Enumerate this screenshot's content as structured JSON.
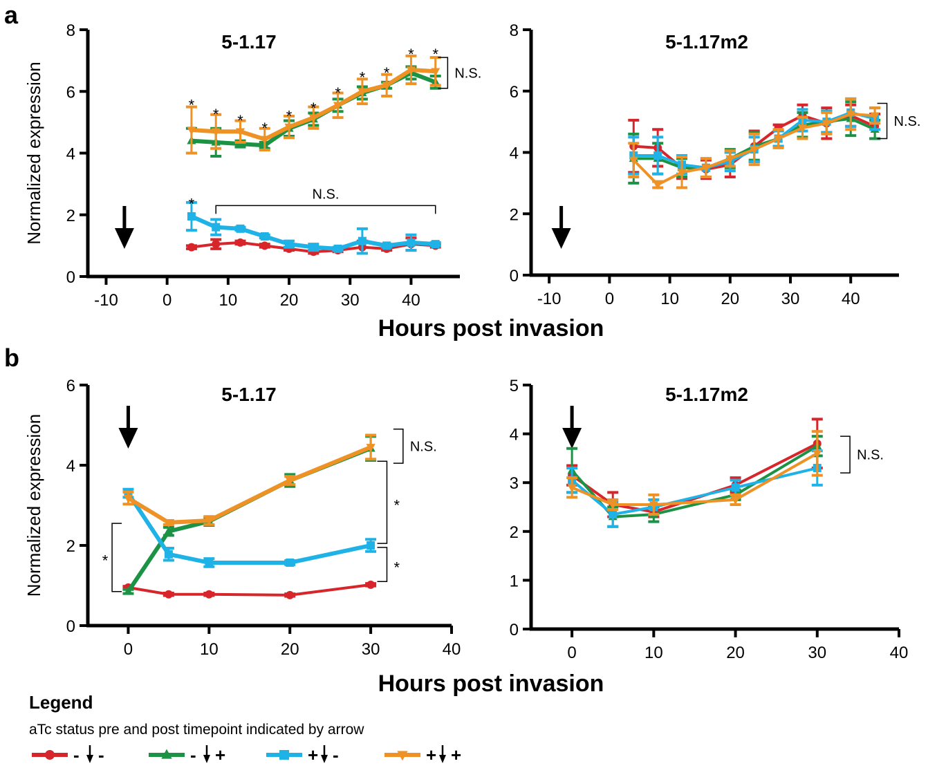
{
  "panel_letters": {
    "a": "a",
    "b": "b"
  },
  "shared_xlabel": "Hours post invasion",
  "legend": {
    "title": "Legend",
    "subtitle": "aTc status pre and post timepoint indicated by arrow",
    "entries": [
      {
        "pre": "-",
        "post": "-",
        "color": "#d7262b",
        "marker": "circle"
      },
      {
        "pre": "-",
        "post": "+",
        "color": "#1b9244",
        "marker": "triangle-up"
      },
      {
        "pre": "+",
        "post": "-",
        "color": "#1fb2e6",
        "marker": "square"
      },
      {
        "pre": "+",
        "post": "+",
        "color": "#ef9226",
        "marker": "triangle-down"
      }
    ]
  },
  "chart_data": [
    {
      "type": "line",
      "panel": "a",
      "title": "5-1.17",
      "xlabel": "Hours post invasion",
      "ylabel": "Normalized expression",
      "xlim": [
        -13,
        48
      ],
      "ylim": [
        0,
        8
      ],
      "xticks": [
        -10,
        0,
        10,
        20,
        30,
        40
      ],
      "yticks": [
        0,
        2,
        4,
        6,
        8
      ],
      "arrow_x": -7,
      "x": [
        4,
        8,
        12,
        16,
        20,
        24,
        28,
        32,
        36,
        40,
        44
      ],
      "series": [
        {
          "legend_index": 0,
          "color": "#d7262b",
          "marker": "circle",
          "width": 4,
          "values": [
            0.95,
            1.05,
            1.1,
            1.0,
            0.9,
            0.8,
            0.85,
            0.95,
            0.9,
            1.05,
            1.0
          ],
          "errors": [
            0.05,
            0.15,
            0.05,
            0.05,
            0.05,
            0.05,
            0.05,
            0.2,
            0.05,
            0.2,
            0.05
          ]
        },
        {
          "legend_index": 1,
          "color": "#1b9244",
          "marker": "triangle-up",
          "width": 6,
          "values": [
            4.4,
            4.35,
            4.3,
            4.25,
            4.8,
            5.1,
            5.55,
            5.95,
            6.2,
            6.6,
            6.3
          ],
          "errors": [
            0.4,
            0.45,
            0.1,
            0.1,
            0.25,
            0.2,
            0.2,
            0.2,
            0.1,
            0.2,
            0.2
          ]
        },
        {
          "legend_index": 2,
          "color": "#1fb2e6",
          "marker": "square",
          "width": 6,
          "values": [
            1.95,
            1.6,
            1.55,
            1.3,
            1.05,
            0.95,
            0.9,
            1.15,
            1.0,
            1.1,
            1.05
          ],
          "errors": [
            0.45,
            0.25,
            0.05,
            0.05,
            0.1,
            0.1,
            0.05,
            0.4,
            0.05,
            0.25,
            0.05
          ]
        },
        {
          "legend_index": 3,
          "color": "#ef9226",
          "marker": "triangle-down",
          "width": 6,
          "values": [
            4.75,
            4.7,
            4.7,
            4.45,
            4.85,
            5.15,
            5.55,
            6.0,
            6.2,
            6.7,
            6.65
          ],
          "errors": [
            0.75,
            0.55,
            0.35,
            0.35,
            0.35,
            0.35,
            0.4,
            0.4,
            0.35,
            0.45,
            0.45
          ]
        }
      ],
      "annotations": [
        {
          "text": "*",
          "x": 4,
          "y": 5.7
        },
        {
          "text": "*",
          "x": 8,
          "y": 5.4
        },
        {
          "text": "*",
          "x": 12,
          "y": 5.2
        },
        {
          "text": "*",
          "x": 16,
          "y": 4.95
        },
        {
          "text": "*",
          "x": 20,
          "y": 5.35
        },
        {
          "text": "*",
          "x": 24,
          "y": 5.6
        },
        {
          "text": "*",
          "x": 28,
          "y": 6.1
        },
        {
          "text": "*",
          "x": 32,
          "y": 6.6
        },
        {
          "text": "*",
          "x": 36,
          "y": 6.75
        },
        {
          "text": "*",
          "x": 40,
          "y": 7.35
        },
        {
          "text": "*",
          "x": 44,
          "y": 7.35
        },
        {
          "text": "*",
          "x": 4,
          "y": 2.5
        }
      ],
      "brackets": [
        {
          "kind": "vertical",
          "x": 46,
          "y1": 6.1,
          "y2": 7.1,
          "label": "N.S."
        },
        {
          "kind": "horizontal",
          "y": 2.3,
          "x1": 8,
          "x2": 44,
          "label": "N.S."
        }
      ]
    },
    {
      "type": "line",
      "panel": "a",
      "title": "5-1.17m2",
      "xlabel": "Hours post invasion",
      "ylabel": "",
      "xlim": [
        -13,
        48
      ],
      "ylim": [
        0,
        8
      ],
      "xticks": [
        -10,
        0,
        10,
        20,
        30,
        40
      ],
      "yticks": [
        0,
        2,
        4,
        6,
        8
      ],
      "arrow_x": -8,
      "x": [
        4,
        8,
        12,
        16,
        20,
        24,
        28,
        32,
        36,
        40,
        44
      ],
      "series": [
        {
          "legend_index": 0,
          "color": "#d7262b",
          "marker": "circle",
          "width": 4,
          "values": [
            4.2,
            4.15,
            3.5,
            3.45,
            3.6,
            4.2,
            4.8,
            5.2,
            4.95,
            5.2,
            4.85
          ],
          "errors": [
            0.85,
            0.6,
            0.35,
            0.3,
            0.4,
            0.5,
            0.1,
            0.35,
            0.5,
            0.35,
            0.4
          ]
        },
        {
          "legend_index": 1,
          "color": "#1b9244",
          "marker": "triangle-up",
          "width": 4,
          "values": [
            3.8,
            3.8,
            3.5,
            3.5,
            3.8,
            4.2,
            4.45,
            4.9,
            5.0,
            5.1,
            4.75
          ],
          "errors": [
            0.8,
            0.5,
            0.3,
            0.3,
            0.3,
            0.45,
            0.25,
            0.4,
            0.35,
            0.55,
            0.3
          ]
        },
        {
          "legend_index": 2,
          "color": "#1fb2e6",
          "marker": "square",
          "width": 4,
          "values": [
            3.9,
            3.9,
            3.6,
            3.5,
            3.7,
            4.1,
            4.45,
            5.05,
            5.0,
            5.3,
            5.1
          ],
          "errors": [
            0.6,
            0.6,
            0.3,
            0.3,
            0.3,
            0.4,
            0.25,
            0.35,
            0.35,
            0.45,
            0.35
          ]
        },
        {
          "legend_index": 3,
          "color": "#ef9226",
          "marker": "triangle-down",
          "width": 4,
          "values": [
            3.75,
            2.95,
            3.35,
            3.5,
            3.8,
            4.1,
            4.45,
            4.8,
            4.95,
            5.25,
            5.2
          ],
          "errors": [
            0.55,
            0.1,
            0.5,
            0.3,
            0.25,
            0.5,
            0.3,
            0.35,
            0.35,
            0.5,
            0.25
          ]
        }
      ],
      "annotations": [],
      "brackets": [
        {
          "kind": "vertical",
          "x": 46,
          "y1": 4.45,
          "y2": 5.6,
          "label": "N.S."
        }
      ]
    },
    {
      "type": "line",
      "panel": "b",
      "title": "5-1.17",
      "xlabel": "Hours post invasion",
      "ylabel": "Normalized expression",
      "xlim": [
        -5,
        40
      ],
      "ylim": [
        0,
        6
      ],
      "xticks": [
        0,
        10,
        20,
        30,
        40
      ],
      "yticks": [
        0,
        2,
        4,
        6
      ],
      "arrow_x": 0,
      "x": [
        0,
        5,
        10,
        20,
        30
      ],
      "series": [
        {
          "legend_index": 0,
          "color": "#d7262b",
          "marker": "circle",
          "width": 4,
          "values": [
            0.95,
            0.78,
            0.78,
            0.76,
            1.02
          ],
          "errors": [
            0.03,
            0.03,
            0.03,
            0.03,
            0.03
          ]
        },
        {
          "legend_index": 1,
          "color": "#1b9244",
          "marker": "triangle-up",
          "width": 6,
          "values": [
            0.85,
            2.35,
            2.6,
            3.62,
            4.42
          ],
          "errors": [
            0.05,
            0.1,
            0.1,
            0.15,
            0.3
          ]
        },
        {
          "legend_index": 2,
          "color": "#1fb2e6",
          "marker": "square",
          "width": 6,
          "values": [
            3.3,
            1.78,
            1.57,
            1.57,
            2.0
          ],
          "errors": [
            0.1,
            0.15,
            0.1,
            0.05,
            0.15
          ]
        },
        {
          "legend_index": 3,
          "color": "#ef9226",
          "marker": "triangle-down",
          "width": 6,
          "values": [
            3.18,
            2.57,
            2.62,
            3.62,
            4.45
          ],
          "errors": [
            0.15,
            0.05,
            0.1,
            0.1,
            0.3
          ]
        }
      ],
      "annotations": [],
      "brackets": [
        {
          "kind": "vertical",
          "x": 34,
          "y1": 4.05,
          "y2": 4.9,
          "label": "N.S."
        },
        {
          "kind": "vertical",
          "x": 32,
          "y1": 2.05,
          "y2": 4.1,
          "label": "*"
        },
        {
          "kind": "vertical",
          "x": 32,
          "y1": 1.1,
          "y2": 1.95,
          "label": "*"
        },
        {
          "kind": "vertical-left",
          "x": -2,
          "y1": 0.85,
          "y2": 2.55,
          "label": "*"
        }
      ]
    },
    {
      "type": "line",
      "panel": "b",
      "title": "5-1.17m2",
      "xlabel": "Hours post invasion",
      "ylabel": "",
      "xlim": [
        -5,
        40
      ],
      "ylim": [
        0,
        5
      ],
      "xticks": [
        0,
        10,
        20,
        30,
        40
      ],
      "yticks": [
        0,
        1,
        2,
        3,
        4,
        5
      ],
      "arrow_x": 0,
      "x": [
        0,
        5,
        10,
        20,
        30
      ],
      "series": [
        {
          "legend_index": 0,
          "color": "#d7262b",
          "marker": "circle",
          "width": 4,
          "values": [
            3.15,
            2.55,
            2.4,
            2.95,
            3.8
          ],
          "errors": [
            0.2,
            0.25,
            0.1,
            0.15,
            0.5
          ]
        },
        {
          "legend_index": 1,
          "color": "#1b9244",
          "marker": "triangle-up",
          "width": 4,
          "values": [
            3.25,
            2.3,
            2.35,
            2.75,
            3.75
          ],
          "errors": [
            0.45,
            0.2,
            0.15,
            0.1,
            0.2
          ]
        },
        {
          "legend_index": 2,
          "color": "#1fb2e6",
          "marker": "square",
          "width": 4,
          "values": [
            3.05,
            2.35,
            2.5,
            2.9,
            3.3
          ],
          "errors": [
            0.25,
            0.25,
            0.15,
            0.15,
            0.35
          ]
        },
        {
          "legend_index": 3,
          "color": "#ef9226",
          "marker": "triangle-down",
          "width": 4,
          "values": [
            2.9,
            2.55,
            2.55,
            2.65,
            3.6
          ],
          "errors": [
            0.2,
            0.1,
            0.2,
            0.1,
            0.45
          ]
        }
      ],
      "annotations": [],
      "brackets": [
        {
          "kind": "vertical",
          "x": 34,
          "y1": 3.2,
          "y2": 3.95,
          "label": "N.S."
        }
      ]
    }
  ]
}
